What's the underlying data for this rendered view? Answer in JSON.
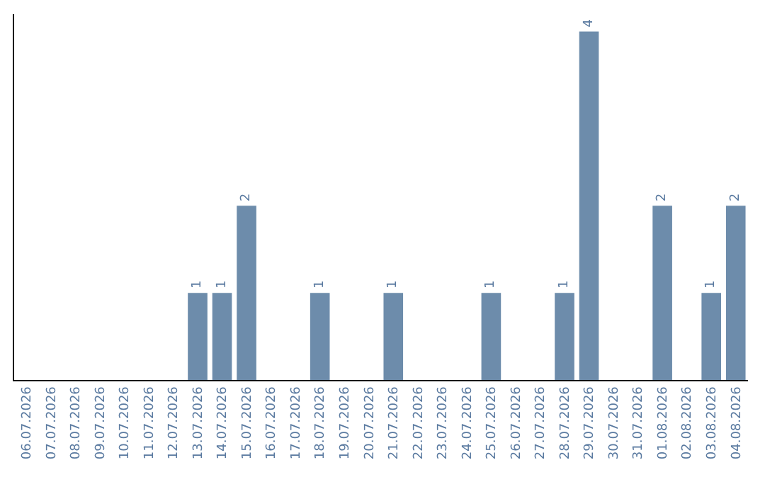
{
  "chart_data": {
    "type": "bar",
    "categories": [
      "06.07.2026",
      "07.07.2026",
      "08.07.2026",
      "09.07.2026",
      "10.07.2026",
      "11.07.2026",
      "12.07.2026",
      "13.07.2026",
      "14.07.2026",
      "15.07.2026",
      "16.07.2026",
      "17.07.2026",
      "18.07.2026",
      "19.07.2026",
      "20.07.2026",
      "21.07.2026",
      "22.07.2026",
      "23.07.2026",
      "24.07.2026",
      "25.07.2026",
      "26.07.2026",
      "27.07.2026",
      "28.07.2026",
      "29.07.2026",
      "30.07.2026",
      "31.07.2026",
      "01.08.2026",
      "02.08.2026",
      "03.08.2026",
      "04.08.2026"
    ],
    "values": [
      0,
      0,
      0,
      0,
      0,
      0,
      0,
      1,
      1,
      2,
      0,
      0,
      1,
      0,
      0,
      1,
      0,
      0,
      0,
      1,
      0,
      0,
      1,
      4,
      0,
      0,
      2,
      0,
      1,
      2
    ],
    "value_labels": [
      null,
      null,
      null,
      null,
      null,
      null,
      null,
      "1",
      "1",
      "2",
      null,
      null,
      "1",
      null,
      null,
      "1",
      null,
      null,
      null,
      "1",
      null,
      null,
      "1",
      "4",
      null,
      null,
      "2",
      null,
      "1",
      "2"
    ],
    "color": "#6d8cab",
    "tick_labels": "x",
    "legend": false
  }
}
